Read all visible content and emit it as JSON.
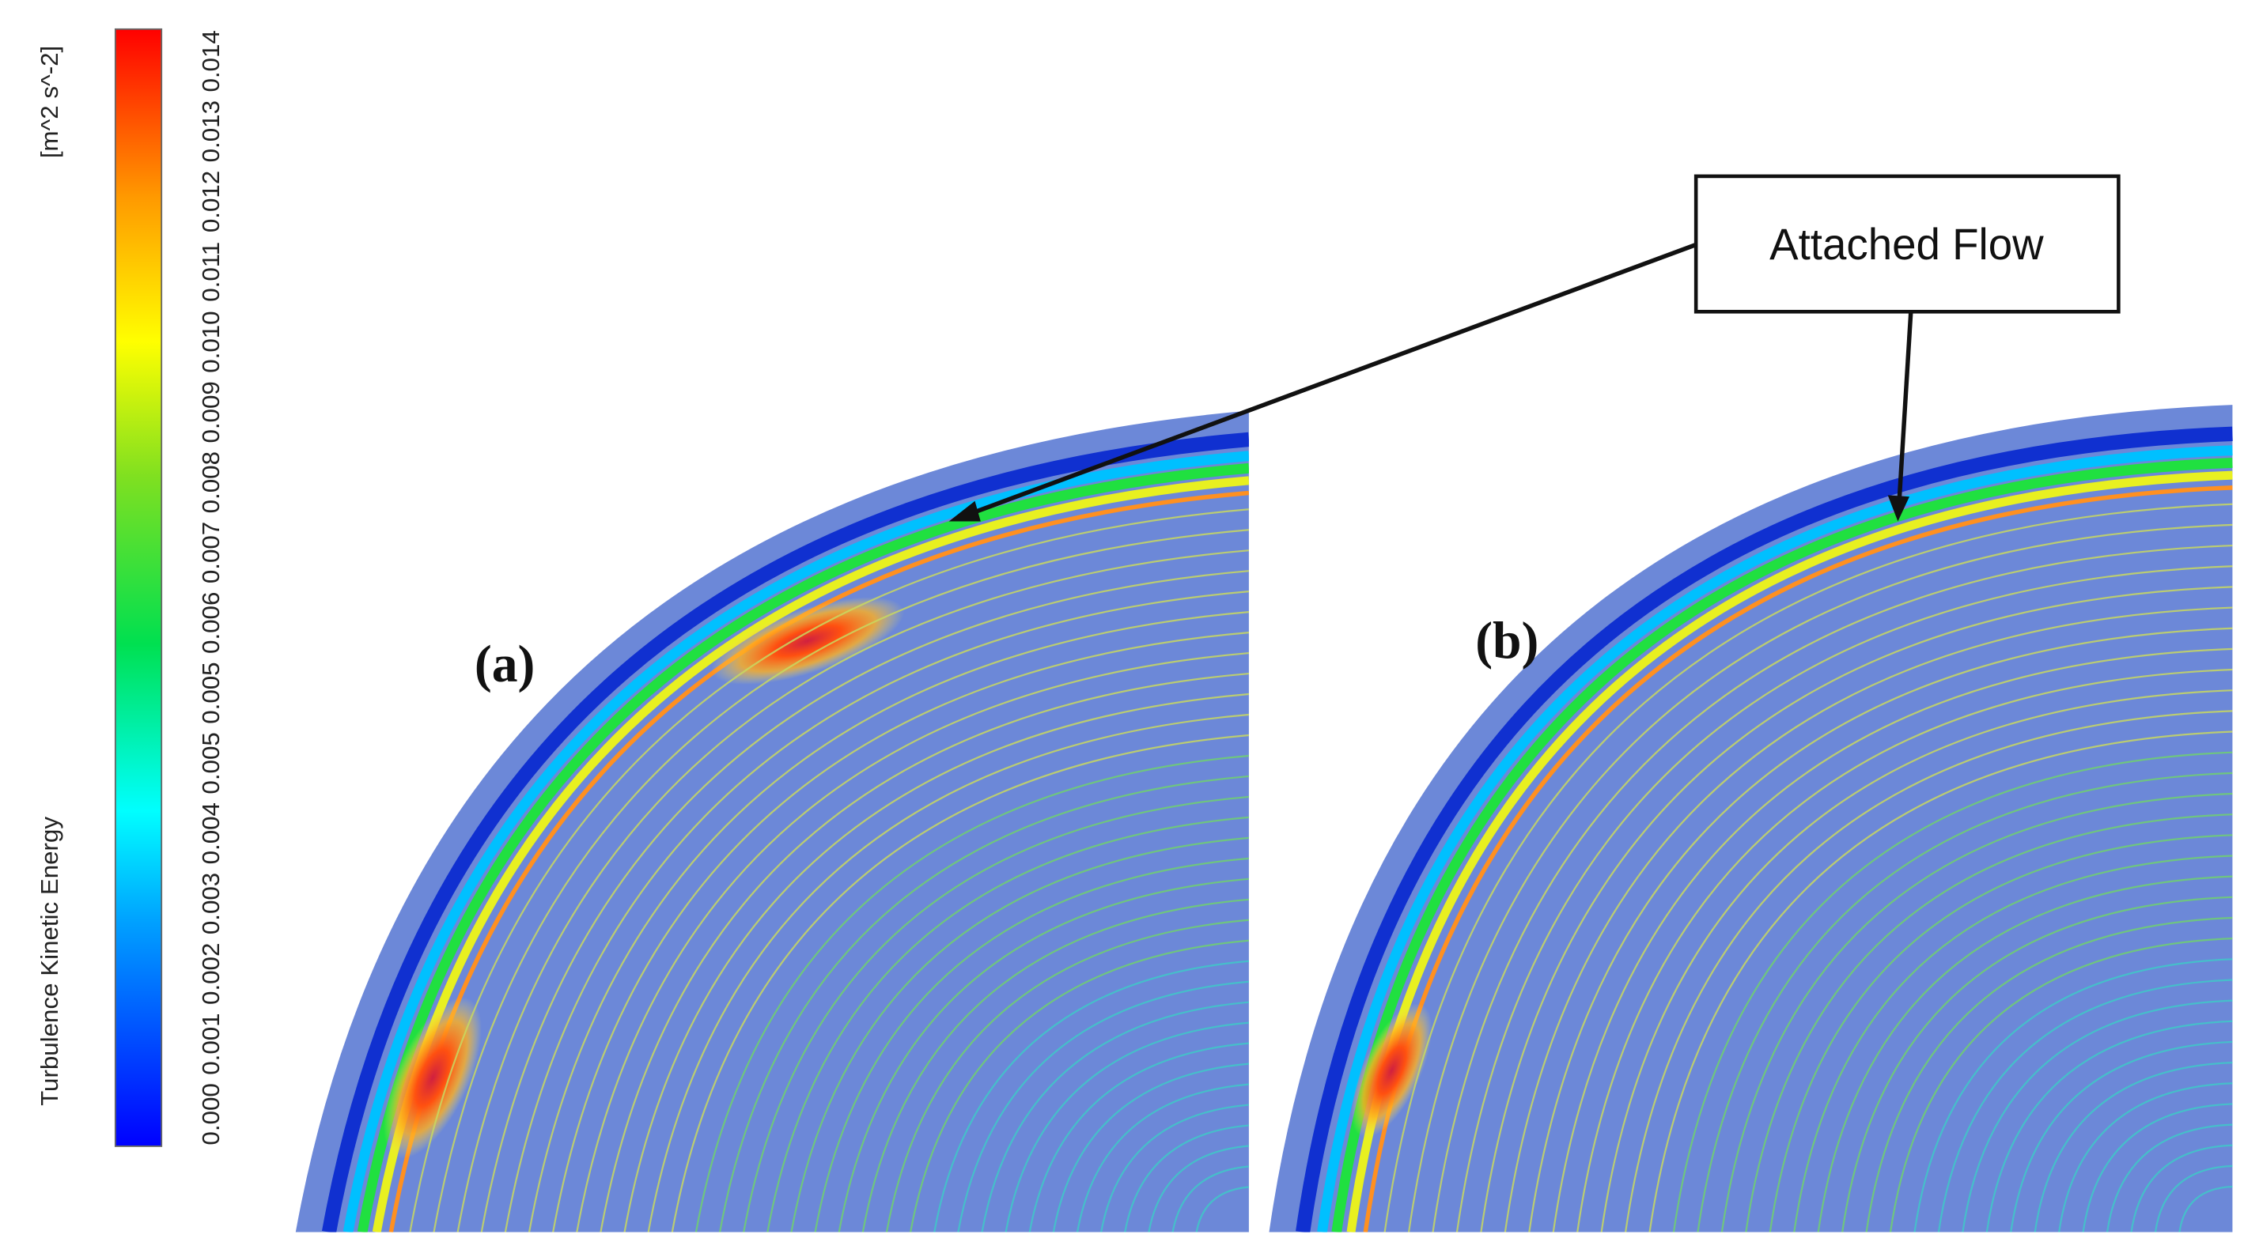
{
  "colorbar": {
    "title": "Turbulence Kinetic Energy",
    "unit": "[m^2 s^-2]",
    "ticks": [
      "0.000",
      "0.001",
      "0.002",
      "0.003",
      "0.004",
      "0.005",
      "0.005",
      "0.006",
      "0.007",
      "0.008",
      "0.009",
      "0.010",
      "0.011",
      "0.012",
      "0.013",
      "0.014"
    ]
  },
  "panels": [
    {
      "label": "(a)"
    },
    {
      "label": "(b)"
    }
  ],
  "annotation": {
    "text": "Attached Flow"
  }
}
